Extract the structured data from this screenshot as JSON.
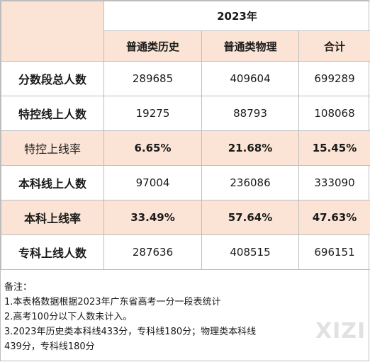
{
  "table": {
    "year": "2023年",
    "columns": [
      "普通类历史",
      "普通类物理",
      "合计"
    ],
    "rows": [
      {
        "label": "分数段总人数",
        "values": [
          "289685",
          "409604",
          "699289"
        ],
        "highlight": false
      },
      {
        "label": "特控线上人数",
        "values": [
          "19275",
          "88793",
          "108068"
        ],
        "highlight": false
      },
      {
        "label": "特控上线率",
        "values": [
          "6.65%",
          "21.68%",
          "15.45%"
        ],
        "highlight": true
      },
      {
        "label": "本科线上人数",
        "values": [
          "97004",
          "236086",
          "333090"
        ],
        "highlight": false
      },
      {
        "label": "本科上线率",
        "values": [
          "33.49%",
          "57.64%",
          "47.63%"
        ],
        "highlight": true
      },
      {
        "label": "专科上线人数",
        "values": [
          "287636",
          "408515",
          "696151"
        ],
        "highlight": false
      }
    ]
  },
  "notes": {
    "title": "备注：",
    "lines": [
      "1.本表格数据根据2023年广东省高考一分一段表统计",
      "2.高考100分以下人数未计入。",
      "3.2023年历史类本科线433分，专科线180分；物理类本科线",
      "439分，专科线180分"
    ]
  },
  "watermark": "XIZI",
  "colors": {
    "highlight": "#fbe4d5",
    "border": "#bdbdbd"
  }
}
